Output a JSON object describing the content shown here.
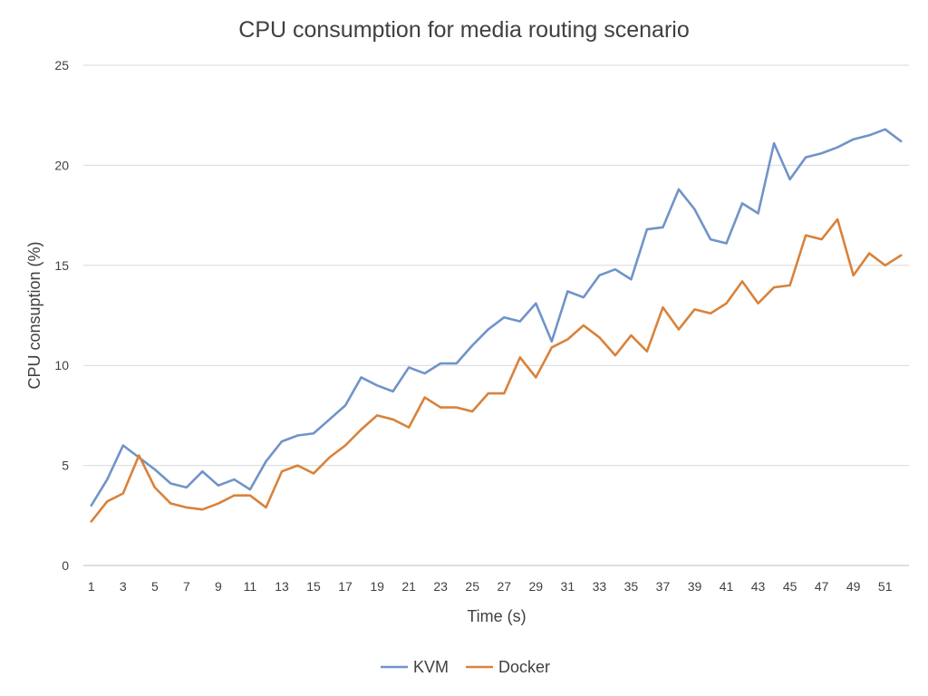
{
  "chart_data": {
    "type": "line",
    "title": "CPU consumption for media routing scenario",
    "xlabel": "Time (s)",
    "ylabel": "CPU consuption  (%)",
    "ylim": [
      0,
      25
    ],
    "yticks": [
      0,
      5,
      10,
      15,
      20,
      25
    ],
    "xticks": [
      1,
      3,
      5,
      7,
      9,
      11,
      13,
      15,
      17,
      19,
      21,
      23,
      25,
      27,
      29,
      31,
      33,
      35,
      37,
      39,
      41,
      43,
      45,
      47,
      49,
      51
    ],
    "x": [
      1,
      2,
      3,
      4,
      5,
      6,
      7,
      8,
      9,
      10,
      11,
      12,
      13,
      14,
      15,
      16,
      17,
      18,
      19,
      20,
      21,
      22,
      23,
      24,
      25,
      26,
      27,
      28,
      29,
      30,
      31,
      32,
      33,
      34,
      35,
      36,
      37,
      38,
      39,
      40,
      41,
      42,
      43,
      44,
      45,
      46,
      47,
      48,
      49,
      50,
      51,
      52
    ],
    "grid": true,
    "legend_position": "bottom",
    "series": [
      {
        "name": "KVM",
        "color": "#7094c8",
        "values": [
          3.0,
          4.3,
          6.0,
          5.4,
          4.8,
          4.1,
          3.9,
          4.7,
          4.0,
          4.3,
          3.8,
          5.2,
          6.2,
          6.5,
          6.6,
          7.3,
          8.0,
          9.4,
          9.0,
          8.7,
          9.9,
          9.6,
          10.1,
          10.1,
          11.0,
          11.8,
          12.4,
          12.2,
          13.1,
          11.2,
          13.7,
          13.4,
          14.5,
          14.8,
          14.3,
          16.8,
          16.9,
          18.8,
          17.8,
          16.3,
          16.1,
          18.1,
          17.6,
          21.1,
          19.3,
          20.4,
          20.6,
          20.9,
          21.3,
          21.5,
          21.8,
          21.2
        ]
      },
      {
        "name": "Docker",
        "color": "#d9823b",
        "values": [
          2.2,
          3.2,
          3.6,
          5.5,
          3.9,
          3.1,
          2.9,
          2.8,
          3.1,
          3.5,
          3.5,
          2.9,
          4.7,
          5.0,
          4.6,
          5.4,
          6.0,
          6.8,
          7.5,
          7.3,
          6.9,
          8.4,
          7.9,
          7.9,
          7.7,
          8.6,
          8.6,
          10.4,
          9.4,
          10.9,
          11.3,
          12.0,
          11.4,
          10.5,
          11.5,
          10.7,
          12.9,
          11.8,
          12.8,
          12.6,
          13.1,
          14.2,
          13.1,
          13.9,
          14.0,
          16.5,
          16.3,
          17.3,
          14.5,
          15.6,
          15.0,
          15.5
        ]
      }
    ]
  }
}
